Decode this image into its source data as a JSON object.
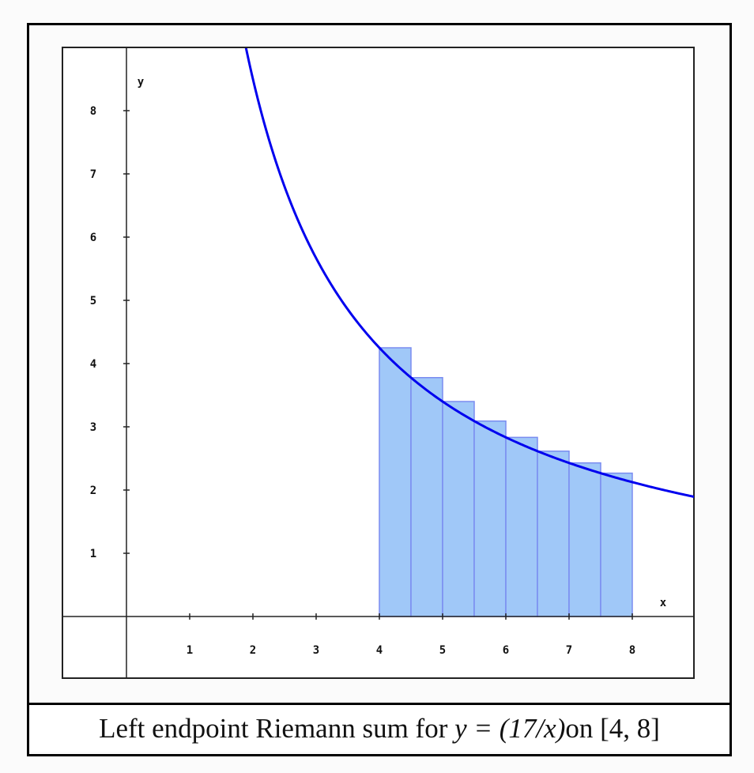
{
  "caption": {
    "prefix": "Left endpoint Riemann sum for ",
    "formula": "y = (17/x)",
    "middle": " on ",
    "interval": "[4, 8]"
  },
  "axes": {
    "x_label": "x",
    "y_label": "y",
    "x_ticks": [
      "1",
      "2",
      "3",
      "4",
      "5",
      "6",
      "7",
      "8"
    ],
    "y_ticks": [
      "1",
      "2",
      "3",
      "4",
      "5",
      "6",
      "7",
      "8"
    ]
  },
  "colors": {
    "curve": "#0000ee",
    "rect_fill": "#a0c8f8",
    "rect_stroke": "#7a8cf0",
    "axis": "#222222"
  },
  "chart_data": {
    "type": "bar",
    "title": "Left endpoint Riemann sum for y = (17/x) on [4, 8]",
    "function": "y = 17/x",
    "method": "left endpoint",
    "interval": [
      4,
      8
    ],
    "n_subintervals": 8,
    "dx": 0.5,
    "xlabel": "x",
    "ylabel": "y",
    "xlim": [
      -1,
      9
    ],
    "ylim": [
      -1,
      9
    ],
    "grid": false,
    "x_ticks": [
      1,
      2,
      3,
      4,
      5,
      6,
      7,
      8
    ],
    "y_ticks": [
      1,
      2,
      3,
      4,
      5,
      6,
      7,
      8
    ],
    "categories": [
      "4.0",
      "4.5",
      "5.0",
      "5.5",
      "6.0",
      "6.5",
      "7.0",
      "7.5"
    ],
    "values": [
      4.25,
      3.778,
      3.4,
      3.091,
      2.833,
      2.615,
      2.429,
      2.267
    ],
    "series": [
      {
        "name": "rectangles (left endpoints)",
        "x": [
          4.0,
          4.5,
          5.0,
          5.5,
          6.0,
          6.5,
          7.0,
          7.5
        ],
        "values": [
          4.25,
          3.778,
          3.4,
          3.091,
          2.833,
          2.615,
          2.429,
          2.267
        ]
      },
      {
        "name": "curve y = 17/x",
        "type": "line",
        "x_range": [
          1.889,
          9
        ]
      }
    ]
  }
}
